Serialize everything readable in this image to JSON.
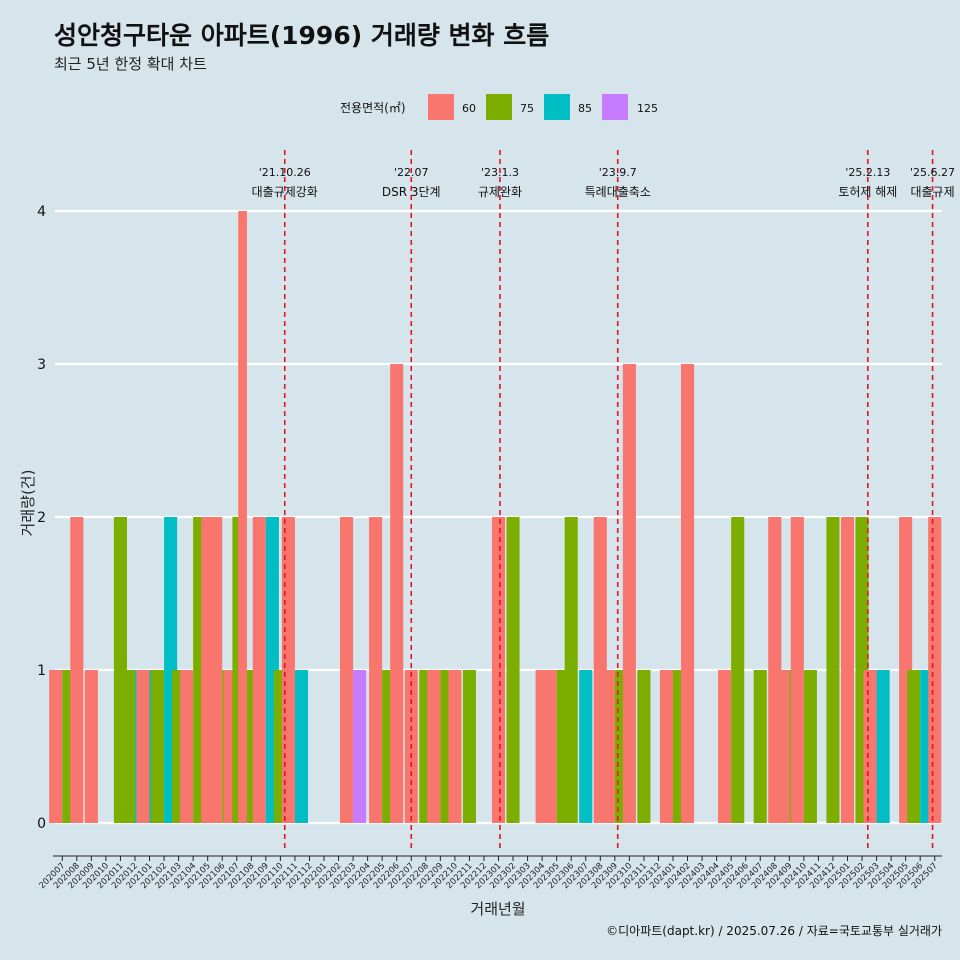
{
  "title": "성안청구타운 아파트(1996) 거래량 변화 흐름",
  "subtitle": "최근 5년 한정 확대 차트",
  "caption": "©디아파트(dapt.kr) / 2025.07.26 / 자료=국토교통부 실거래가",
  "colors": {
    "60": "#f8766d",
    "75": "#7cae00",
    "85": "#00bfc4",
    "125": "#c77cff",
    "event_line": "#e8141c",
    "grid": "#ffffff"
  },
  "chart_data": {
    "type": "bar",
    "xlabel": "거래년월",
    "ylabel": "거래량(건)",
    "ylim": [
      0,
      4
    ],
    "yticks": [
      0,
      1,
      2,
      3,
      4
    ],
    "legend": {
      "title": "전용면적(㎡)",
      "position": "top",
      "entries": [
        "60",
        "75",
        "85",
        "125"
      ]
    },
    "categories": [
      "202007",
      "202008",
      "202009",
      "202010",
      "202011",
      "202012",
      "202101",
      "202102",
      "202103",
      "202104",
      "202105",
      "202106",
      "202107",
      "202108",
      "202109",
      "202110",
      "202111",
      "202112",
      "202201",
      "202202",
      "202203",
      "202204",
      "202205",
      "202206",
      "202207",
      "202208",
      "202209",
      "202210",
      "202211",
      "202212",
      "202301",
      "202302",
      "202303",
      "202304",
      "202305",
      "202306",
      "202307",
      "202308",
      "202309",
      "202310",
      "202311",
      "202312",
      "202401",
      "202402",
      "202403",
      "202404",
      "202405",
      "202406",
      "202407",
      "202408",
      "202409",
      "202410",
      "202411",
      "202412",
      "202501",
      "202502",
      "202503",
      "202504",
      "202505",
      "202506",
      "202507"
    ],
    "bars": [
      {
        "month": "202007",
        "area": "60",
        "value": 1
      },
      {
        "month": "202007",
        "area": "75",
        "value": 1
      },
      {
        "month": "202008",
        "area": "60",
        "value": 2
      },
      {
        "month": "202009",
        "area": "60",
        "value": 1
      },
      {
        "month": "202011",
        "area": "75",
        "value": 2
      },
      {
        "month": "202012",
        "area": "75",
        "value": 1
      },
      {
        "month": "202012",
        "area": "85",
        "value": 1
      },
      {
        "month": "202101",
        "area": "60",
        "value": 1
      },
      {
        "month": "202101",
        "area": "85",
        "value": 1
      },
      {
        "month": "202102",
        "area": "75",
        "value": 1
      },
      {
        "month": "202102",
        "area": "85",
        "value": 2
      },
      {
        "month": "202103",
        "area": "75",
        "value": 1
      },
      {
        "month": "202104",
        "area": "60",
        "value": 1
      },
      {
        "month": "202104",
        "area": "75",
        "value": 2
      },
      {
        "month": "202105",
        "area": "60",
        "value": 2
      },
      {
        "month": "202106",
        "area": "60",
        "value": 2
      },
      {
        "month": "202106",
        "area": "75",
        "value": 1
      },
      {
        "month": "202107",
        "area": "60",
        "value": 1
      },
      {
        "month": "202107",
        "area": "75",
        "value": 2
      },
      {
        "month": "202107",
        "area": "125",
        "value": 1
      },
      {
        "month": "202108",
        "area": "60",
        "value": 4
      },
      {
        "month": "202108",
        "area": "75",
        "value": 1
      },
      {
        "month": "202108",
        "area": "125",
        "value": 1
      },
      {
        "month": "202109",
        "area": "60",
        "value": 2
      },
      {
        "month": "202109",
        "area": "85",
        "value": 2
      },
      {
        "month": "202110",
        "area": "75",
        "value": 1
      },
      {
        "month": "202111",
        "area": "60",
        "value": 2
      },
      {
        "month": "202111",
        "area": "85",
        "value": 1
      },
      {
        "month": "202203",
        "area": "60",
        "value": 2
      },
      {
        "month": "202203",
        "area": "125",
        "value": 1
      },
      {
        "month": "202205",
        "area": "60",
        "value": 2
      },
      {
        "month": "202205",
        "area": "75",
        "value": 1
      },
      {
        "month": "202206",
        "area": "60",
        "value": 3
      },
      {
        "month": "202207",
        "area": "60",
        "value": 1
      },
      {
        "month": "202208",
        "area": "75",
        "value": 1
      },
      {
        "month": "202209",
        "area": "60",
        "value": 1
      },
      {
        "month": "202209",
        "area": "75",
        "value": 1
      },
      {
        "month": "202210",
        "area": "60",
        "value": 1
      },
      {
        "month": "202211",
        "area": "75",
        "value": 1
      },
      {
        "month": "202301",
        "area": "60",
        "value": 2
      },
      {
        "month": "202302",
        "area": "75",
        "value": 2
      },
      {
        "month": "202304",
        "area": "60",
        "value": 1
      },
      {
        "month": "202305",
        "area": "60",
        "value": 1
      },
      {
        "month": "202305",
        "area": "75",
        "value": 1
      },
      {
        "month": "202306",
        "area": "75",
        "value": 2
      },
      {
        "month": "202307",
        "area": "85",
        "value": 1
      },
      {
        "month": "202308",
        "area": "60",
        "value": 2
      },
      {
        "month": "202309",
        "area": "60",
        "value": 1
      },
      {
        "month": "202309",
        "area": "75",
        "value": 1
      },
      {
        "month": "202310",
        "area": "60",
        "value": 3
      },
      {
        "month": "202311",
        "area": "75",
        "value": 1
      },
      {
        "month": "202401",
        "area": "60",
        "value": 1
      },
      {
        "month": "202401",
        "area": "75",
        "value": 1
      },
      {
        "month": "202402",
        "area": "60",
        "value": 3
      },
      {
        "month": "202405",
        "area": "60",
        "value": 1
      },
      {
        "month": "202405",
        "area": "75",
        "value": 2
      },
      {
        "month": "202407",
        "area": "75",
        "value": 1
      },
      {
        "month": "202408",
        "area": "60",
        "value": 2
      },
      {
        "month": "202409",
        "area": "60",
        "value": 1
      },
      {
        "month": "202409",
        "area": "75",
        "value": 1
      },
      {
        "month": "202410",
        "area": "60",
        "value": 2
      },
      {
        "month": "202410",
        "area": "75",
        "value": 1
      },
      {
        "month": "202412",
        "area": "75",
        "value": 2
      },
      {
        "month": "202501",
        "area": "60",
        "value": 2
      },
      {
        "month": "202502",
        "area": "75",
        "value": 2
      },
      {
        "month": "202503",
        "area": "60",
        "value": 1
      },
      {
        "month": "202503",
        "area": "85",
        "value": 1
      },
      {
        "month": "202505",
        "area": "60",
        "value": 2
      },
      {
        "month": "202506",
        "area": "75",
        "value": 1
      },
      {
        "month": "202506",
        "area": "85",
        "value": 1
      },
      {
        "month": "202507",
        "area": "60",
        "value": 2
      }
    ],
    "events": [
      {
        "date": "'21.10.26",
        "label": "대출규제강화",
        "at_month": "202110",
        "offset": 0.3
      },
      {
        "date": "'22.07",
        "label": "DSR 3단계",
        "at_month": "202207",
        "offset": 0.0
      },
      {
        "date": "'23.1.3",
        "label": "규제완화",
        "at_month": "202301",
        "offset": 0.1
      },
      {
        "date": "'23.9.7",
        "label": "특례대출축소",
        "at_month": "202309",
        "offset": 0.2
      },
      {
        "date": "'25.2.13",
        "label": "토허제 해제",
        "at_month": "202502",
        "offset": 0.4
      },
      {
        "date": "'25.6.27",
        "label": "대출규제",
        "at_month": "202506",
        "offset": 0.85
      }
    ]
  }
}
